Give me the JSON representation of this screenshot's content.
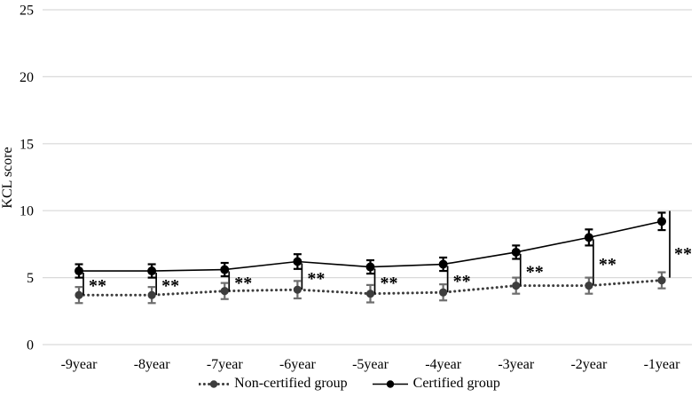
{
  "chart_data": {
    "type": "line",
    "title": "",
    "xlabel": "",
    "ylabel": "KCL score",
    "ylim": [
      0,
      25
    ],
    "yticks": [
      0,
      5,
      10,
      15,
      20,
      25
    ],
    "grid": "horizontal",
    "gridline_color": "#d9d9d9",
    "background": "#ffffff",
    "legend_position": "bottom-center",
    "categories": [
      "-9year",
      "-8year",
      "-7year",
      "-6year",
      "-5year",
      "-4year",
      "-3year",
      "-2year",
      "-1year"
    ],
    "series": [
      {
        "name": "Non-certified group",
        "line_style": "dotted",
        "marker": "filled-circle",
        "color": "#3d3d3d",
        "error_bar_color": "#6e6e6e",
        "values": [
          3.7,
          3.7,
          4.0,
          4.1,
          3.8,
          3.9,
          4.4,
          4.4,
          4.8
        ],
        "error_bars": [
          0.6,
          0.6,
          0.6,
          0.65,
          0.65,
          0.6,
          0.6,
          0.6,
          0.6
        ]
      },
      {
        "name": "Certified group",
        "line_style": "solid",
        "marker": "filled-circle",
        "color": "#000000",
        "error_bar_color": "#000000",
        "values": [
          5.5,
          5.5,
          5.6,
          6.2,
          5.8,
          6.0,
          6.9,
          8.0,
          9.2
        ],
        "error_bars": [
          0.5,
          0.5,
          0.5,
          0.55,
          0.5,
          0.5,
          0.5,
          0.6,
          0.65
        ]
      }
    ],
    "significance_markers": {
      "label": "**",
      "at_categories": [
        "-9year",
        "-8year",
        "-7year",
        "-6year",
        "-5year",
        "-4year",
        "-3year",
        "-2year",
        "-1year"
      ]
    }
  },
  "legend": {
    "items": [
      {
        "label": "Non-certified group",
        "marker": "dotted-line-with-circle"
      },
      {
        "label": "Certified group",
        "marker": "solid-line-with-circle"
      }
    ]
  }
}
